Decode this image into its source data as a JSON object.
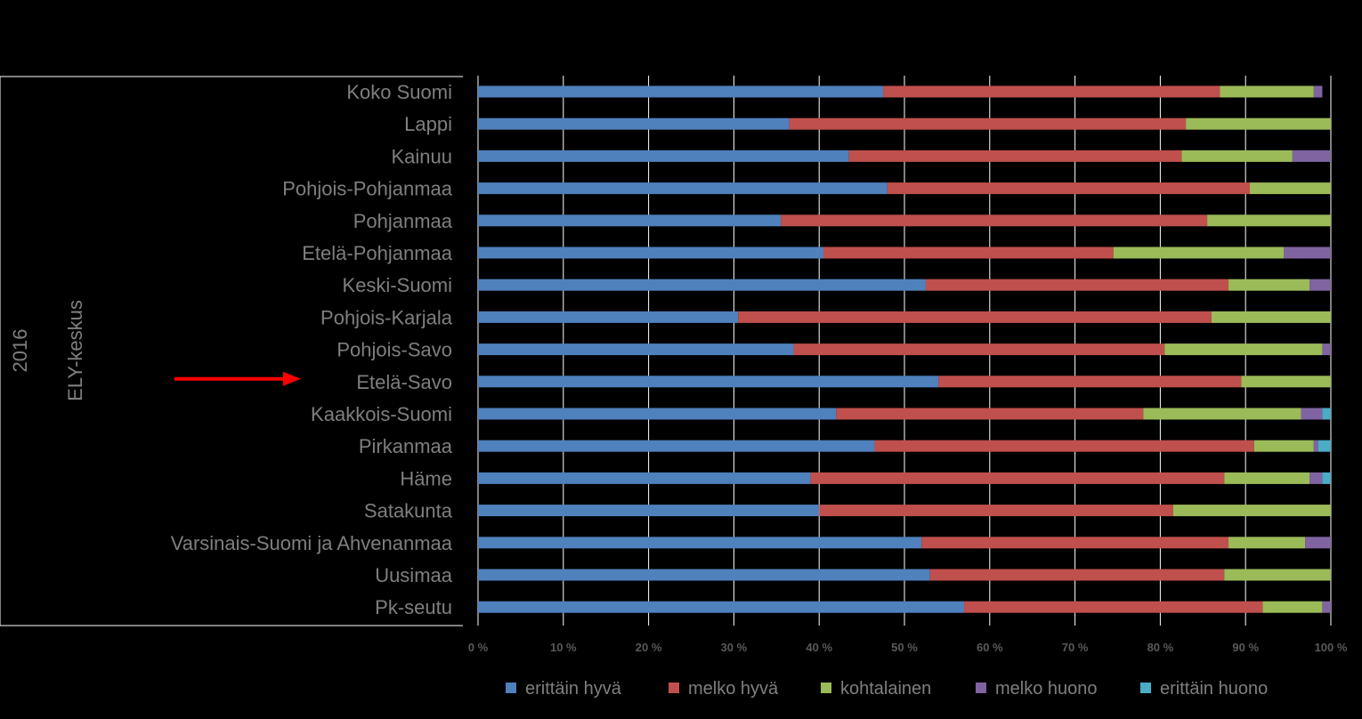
{
  "chart_data": {
    "type": "bar",
    "orientation": "horizontal",
    "stacked": "percent",
    "group_labels": [
      "2016",
      "ELY-keskus"
    ],
    "categories": [
      "Koko Suomi",
      "Lappi",
      "Kainuu",
      "Pohjois-Pohjanmaa",
      "Pohjanmaa",
      "Etelä-Pohjanmaa",
      "Keski-Suomi",
      "Pohjois-Karjala",
      "Pohjois-Savo",
      "Etelä-Savo",
      "Kaakkois-Suomi",
      "Pirkanmaa",
      "Häme",
      "Satakunta",
      "Varsinais-Suomi ja Ahvenanmaa",
      "Uusimaa",
      "Pk-seutu"
    ],
    "series": [
      {
        "name": "erittäin hyvä",
        "color": "#4F81BD",
        "values": [
          47.5,
          36.5,
          43.5,
          48,
          35.5,
          40.5,
          52.5,
          30.5,
          37,
          54,
          42,
          46.5,
          39,
          40,
          52,
          53,
          57
        ]
      },
      {
        "name": "melko hyvä",
        "color": "#C0504D",
        "values": [
          39.5,
          46.5,
          39,
          42.5,
          50,
          34,
          35.5,
          55.5,
          43.5,
          35.5,
          36,
          44.5,
          48.5,
          41.5,
          36,
          34.5,
          35
        ]
      },
      {
        "name": "kohtalainen",
        "color": "#9BBB59",
        "values": [
          11,
          17,
          13,
          9.5,
          14.5,
          20,
          9.5,
          14,
          18.5,
          10.5,
          18.5,
          7,
          10,
          18.5,
          9,
          12.5,
          7
        ]
      },
      {
        "name": "melko huono",
        "color": "#8064A2",
        "values": [
          1,
          0,
          4.5,
          0,
          0,
          5.5,
          2.5,
          0,
          1,
          0,
          2.5,
          0.5,
          1.5,
          0,
          3,
          0,
          1
        ]
      },
      {
        "name": "erittäin huono",
        "color": "#4BACC6",
        "values": [
          0,
          0,
          0,
          0,
          0,
          0,
          0,
          0,
          0,
          0,
          1,
          1.5,
          1,
          0,
          0,
          0,
          0
        ]
      }
    ],
    "xlim": [
      0,
      100
    ],
    "x_ticks": [
      "0 %",
      "10 %",
      "20 %",
      "30 %",
      "40 %",
      "50 %",
      "60 %",
      "70 %",
      "80 %",
      "90 %",
      "100 %"
    ],
    "grid": true,
    "legend_position": "bottom",
    "highlight": {
      "category": "Etelä-Savo",
      "marker": "red-arrow"
    }
  }
}
